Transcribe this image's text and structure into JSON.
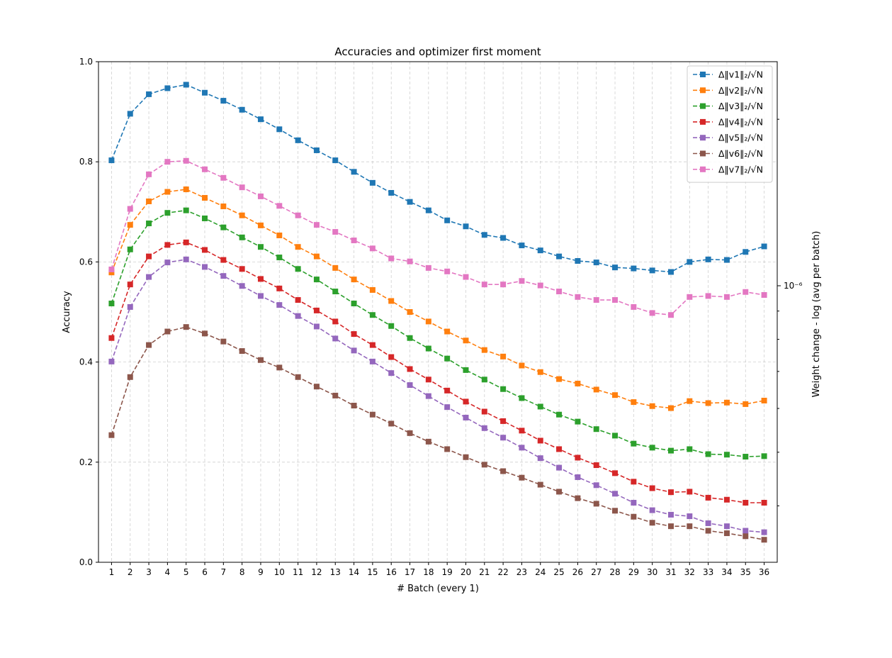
{
  "chart_data": {
    "type": "line",
    "title": "Accuracies and optimizer first moment",
    "xlabel": "# Batch (every 1)",
    "ylabel": "Accuracy",
    "ylabel_right": "Weight change - log (avg per batch)",
    "right_tick_label": "10⁻⁶",
    "x": [
      1,
      2,
      3,
      4,
      5,
      6,
      7,
      8,
      9,
      10,
      11,
      12,
      13,
      14,
      15,
      16,
      17,
      18,
      19,
      20,
      21,
      22,
      23,
      24,
      25,
      26,
      27,
      28,
      29,
      30,
      31,
      32,
      33,
      34,
      35,
      36
    ],
    "ylim": [
      0,
      1.0
    ],
    "yticks": [
      0.0,
      0.2,
      0.4,
      0.6,
      0.8,
      1.0
    ],
    "grid": true,
    "legend_position": "top-right",
    "series": [
      {
        "name": "Δ‖v1‖₂/√N",
        "color": "#1f77b4",
        "values": [
          0.803,
          0.896,
          0.935,
          0.947,
          0.954,
          0.938,
          0.922,
          0.904,
          0.885,
          0.865,
          0.843,
          0.823,
          0.803,
          0.78,
          0.758,
          0.738,
          0.72,
          0.703,
          0.683,
          0.671,
          0.654,
          0.648,
          0.633,
          0.623,
          0.611,
          0.602,
          0.599,
          0.589,
          0.587,
          0.583,
          0.58,
          0.6,
          0.605,
          0.604,
          0.62,
          0.631
        ]
      },
      {
        "name": "Δ‖v2‖₂/√N",
        "color": "#ff7f0e",
        "values": [
          0.579,
          0.674,
          0.721,
          0.74,
          0.745,
          0.728,
          0.711,
          0.693,
          0.673,
          0.653,
          0.63,
          0.611,
          0.588,
          0.565,
          0.544,
          0.522,
          0.5,
          0.481,
          0.461,
          0.443,
          0.424,
          0.411,
          0.393,
          0.38,
          0.366,
          0.357,
          0.345,
          0.334,
          0.32,
          0.312,
          0.308,
          0.322,
          0.318,
          0.319,
          0.316,
          0.323
        ]
      },
      {
        "name": "Δ‖v3‖₂/√N",
        "color": "#2ca02c",
        "values": [
          0.517,
          0.625,
          0.677,
          0.698,
          0.703,
          0.687,
          0.669,
          0.649,
          0.63,
          0.609,
          0.586,
          0.565,
          0.541,
          0.517,
          0.494,
          0.472,
          0.448,
          0.427,
          0.407,
          0.384,
          0.365,
          0.346,
          0.328,
          0.311,
          0.295,
          0.281,
          0.266,
          0.253,
          0.237,
          0.229,
          0.223,
          0.226,
          0.216,
          0.215,
          0.211,
          0.212
        ]
      },
      {
        "name": "Δ‖v4‖₂/√N",
        "color": "#d62728",
        "values": [
          0.448,
          0.555,
          0.611,
          0.634,
          0.639,
          0.624,
          0.604,
          0.586,
          0.566,
          0.547,
          0.524,
          0.503,
          0.481,
          0.456,
          0.434,
          0.41,
          0.386,
          0.365,
          0.343,
          0.321,
          0.301,
          0.282,
          0.263,
          0.243,
          0.226,
          0.209,
          0.194,
          0.178,
          0.161,
          0.148,
          0.14,
          0.141,
          0.129,
          0.125,
          0.119,
          0.119
        ]
      },
      {
        "name": "Δ‖v5‖₂/√N",
        "color": "#9467bd",
        "values": [
          0.401,
          0.51,
          0.57,
          0.599,
          0.605,
          0.59,
          0.572,
          0.552,
          0.532,
          0.514,
          0.492,
          0.471,
          0.447,
          0.423,
          0.401,
          0.378,
          0.354,
          0.332,
          0.31,
          0.289,
          0.268,
          0.249,
          0.229,
          0.208,
          0.189,
          0.17,
          0.154,
          0.137,
          0.119,
          0.104,
          0.095,
          0.092,
          0.078,
          0.072,
          0.063,
          0.06
        ]
      },
      {
        "name": "Δ‖v6‖₂/√N",
        "color": "#8c564b",
        "values": [
          0.254,
          0.37,
          0.434,
          0.461,
          0.47,
          0.457,
          0.441,
          0.422,
          0.404,
          0.389,
          0.37,
          0.351,
          0.333,
          0.313,
          0.295,
          0.277,
          0.258,
          0.241,
          0.226,
          0.21,
          0.195,
          0.182,
          0.169,
          0.155,
          0.141,
          0.128,
          0.117,
          0.103,
          0.091,
          0.079,
          0.072,
          0.072,
          0.063,
          0.058,
          0.052,
          0.045
        ]
      },
      {
        "name": "Δ‖v7‖₂/√N",
        "color": "#e377c2",
        "values": [
          0.585,
          0.706,
          0.775,
          0.8,
          0.802,
          0.785,
          0.768,
          0.749,
          0.731,
          0.712,
          0.693,
          0.674,
          0.66,
          0.643,
          0.627,
          0.607,
          0.601,
          0.588,
          0.581,
          0.57,
          0.555,
          0.555,
          0.562,
          0.553,
          0.541,
          0.53,
          0.524,
          0.524,
          0.51,
          0.498,
          0.494,
          0.53,
          0.532,
          0.53,
          0.54,
          0.534
        ]
      }
    ]
  }
}
